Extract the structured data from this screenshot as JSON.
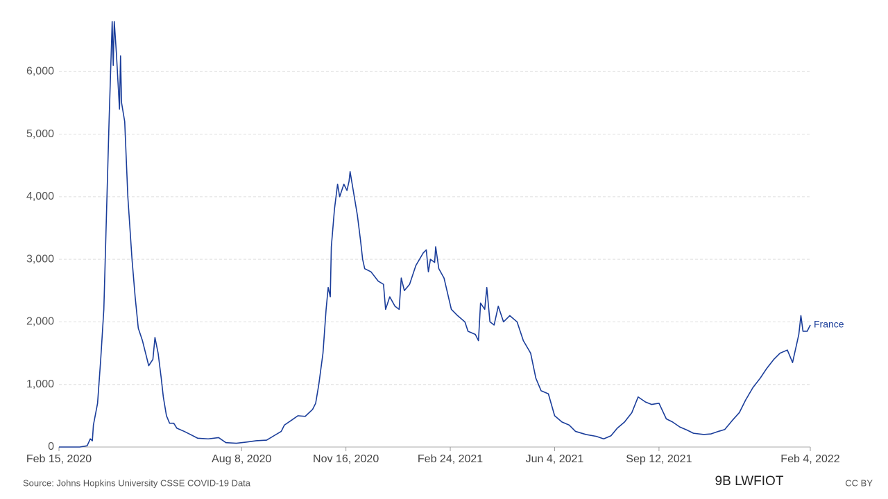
{
  "chart_data": {
    "type": "line",
    "x": [
      "2020-02-15",
      "2020-03-06",
      "2020-03-13",
      "2020-03-16",
      "2020-03-18",
      "2020-03-19",
      "2020-03-23",
      "2020-03-26",
      "2020-03-29",
      "2020-03-31",
      "2020-04-03",
      "2020-04-06",
      "2020-04-07",
      "2020-04-08",
      "2020-04-10",
      "2020-04-13",
      "2020-04-14",
      "2020-04-15",
      "2020-04-18",
      "2020-04-21",
      "2020-04-25",
      "2020-04-28",
      "2020-05-01",
      "2020-05-05",
      "2020-05-08",
      "2020-05-11",
      "2020-05-15",
      "2020-05-17",
      "2020-05-20",
      "2020-05-23",
      "2020-05-25",
      "2020-05-28",
      "2020-05-31",
      "2020-06-04",
      "2020-06-07",
      "2020-06-14",
      "2020-06-20",
      "2020-06-27",
      "2020-07-07",
      "2020-07-17",
      "2020-07-24",
      "2020-08-03",
      "2020-08-13",
      "2020-08-22",
      "2020-09-01",
      "2020-09-08",
      "2020-09-15",
      "2020-09-18",
      "2020-09-25",
      "2020-10-01",
      "2020-10-08",
      "2020-10-15",
      "2020-10-18",
      "2020-10-21",
      "2020-10-25",
      "2020-10-28",
      "2020-10-30",
      "2020-11-01",
      "2020-11-02",
      "2020-11-05",
      "2020-11-08",
      "2020-11-10",
      "2020-11-14",
      "2020-11-17",
      "2020-11-19",
      "2020-11-20",
      "2020-11-24",
      "2020-11-27",
      "2020-11-30",
      "2020-12-02",
      "2020-12-04",
      "2020-12-10",
      "2020-12-17",
      "2020-12-22",
      "2020-12-24",
      "2020-12-28",
      "2021-01-02",
      "2021-01-06",
      "2021-01-08",
      "2021-01-11",
      "2021-01-16",
      "2021-01-22",
      "2021-01-29",
      "2021-02-01",
      "2021-02-03",
      "2021-02-05",
      "2021-02-09",
      "2021-02-10",
      "2021-02-13",
      "2021-02-18",
      "2021-02-25",
      "2021-03-03",
      "2021-03-10",
      "2021-03-13",
      "2021-03-20",
      "2021-03-23",
      "2021-03-25",
      "2021-03-29",
      "2021-03-31",
      "2021-04-03",
      "2021-04-07",
      "2021-04-11",
      "2021-04-16",
      "2021-04-22",
      "2021-04-29",
      "2021-05-05",
      "2021-05-12",
      "2021-05-17",
      "2021-05-22",
      "2021-05-29",
      "2021-06-04",
      "2021-06-11",
      "2021-06-18",
      "2021-06-24",
      "2021-07-04",
      "2021-07-14",
      "2021-07-21",
      "2021-07-28",
      "2021-08-03",
      "2021-08-10",
      "2021-08-17",
      "2021-08-23",
      "2021-08-30",
      "2021-09-05",
      "2021-09-12",
      "2021-09-19",
      "2021-09-25",
      "2021-10-02",
      "2021-10-09",
      "2021-10-15",
      "2021-10-25",
      "2021-11-01",
      "2021-11-08",
      "2021-11-14",
      "2021-11-21",
      "2021-11-28",
      "2021-12-04",
      "2021-12-11",
      "2021-12-18",
      "2021-12-24",
      "2021-12-31",
      "2022-01-06",
      "2022-01-13",
      "2022-01-18",
      "2022-01-22",
      "2022-01-24",
      "2022-01-26",
      "2022-01-28",
      "2022-02-01",
      "2022-02-04"
    ],
    "series": [
      {
        "name": "France",
        "color": "#1a3d9a",
        "values": [
          0,
          0,
          20,
          130,
          100,
          350,
          700,
          1400,
          2200,
          3400,
          5200,
          6800,
          6100,
          6800,
          6300,
          5400,
          6250,
          5500,
          5200,
          4000,
          3000,
          2400,
          1900,
          1700,
          1500,
          1300,
          1400,
          1750,
          1500,
          1100,
          800,
          500,
          380,
          380,
          300,
          250,
          200,
          140,
          130,
          150,
          70,
          60,
          80,
          100,
          110,
          180,
          250,
          350,
          430,
          500,
          490,
          600,
          700,
          1000,
          1500,
          2200,
          2550,
          2400,
          3200,
          3800,
          4200,
          4000,
          4200,
          4100,
          4250,
          4400,
          4000,
          3700,
          3300,
          3000,
          2850,
          2800,
          2650,
          2600,
          2200,
          2400,
          2250,
          2200,
          2700,
          2500,
          2600,
          2900,
          3100,
          3150,
          2800,
          3000,
          2950,
          3200,
          2850,
          2700,
          2200,
          2100,
          2000,
          1850,
          1800,
          1700,
          2300,
          2200,
          2550,
          2000,
          1950,
          2250,
          2000,
          2100,
          2000,
          1700,
          1500,
          1100,
          900,
          850,
          500,
          400,
          350,
          250,
          200,
          170,
          130,
          180,
          300,
          400,
          550,
          800,
          720,
          680,
          700,
          450,
          400,
          320,
          270,
          220,
          200,
          210,
          250,
          280,
          420,
          550,
          750,
          950,
          1100,
          1250,
          1400,
          1500,
          1550,
          1350,
          1650,
          1800,
          2100,
          1850,
          1850,
          1950
        ]
      }
    ],
    "xlim": [
      "2020-02-15",
      "2022-02-04"
    ],
    "xticks": [
      {
        "value": "2020-02-15",
        "label": "Feb 15, 2020"
      },
      {
        "value": "2020-08-08",
        "label": "Aug 8, 2020"
      },
      {
        "value": "2020-11-16",
        "label": "Nov 16, 2020"
      },
      {
        "value": "2021-02-24",
        "label": "Feb 24, 2021"
      },
      {
        "value": "2021-06-04",
        "label": "Jun 4, 2021"
      },
      {
        "value": "2021-09-12",
        "label": "Sep 12, 2021"
      },
      {
        "value": "2022-02-04",
        "label": "Feb 4, 2022"
      }
    ],
    "ylim": [
      0,
      6900
    ],
    "yticks": [
      0,
      {
        "value": 1000,
        "label": "1,000"
      },
      {
        "value": 2000,
        "label": "2,000"
      },
      {
        "value": 3000,
        "label": "3,000"
      },
      {
        "value": 4000,
        "label": "4,000"
      },
      {
        "value": 5000,
        "label": "5,000"
      },
      {
        "value": 6000,
        "label": "6,000"
      }
    ],
    "grid": true,
    "source": "Source: Johns Hopkins University CSSE COVID-19 Data",
    "watermark": "9B LWFIOT",
    "license": "CC BY"
  }
}
